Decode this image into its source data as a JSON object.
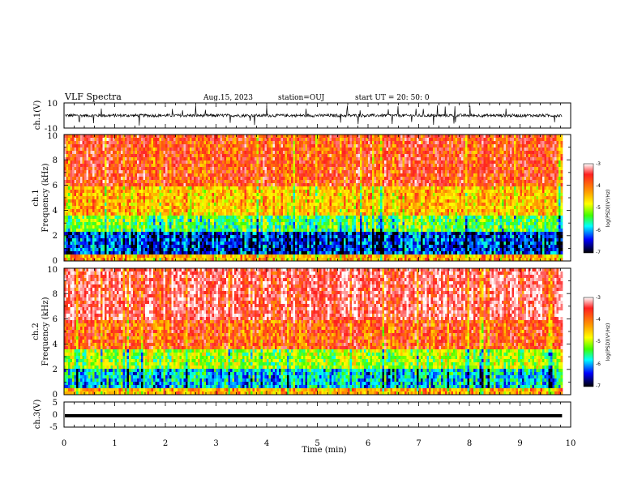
{
  "header": {
    "title": "VLF Spectra",
    "date": "Aug.15, 2023",
    "station": "station=OUJ",
    "start": "start UT =  20: 50: 0"
  },
  "colors": {
    "trace": "#000000",
    "axis": "#000000",
    "colormap": [
      "#ffffff",
      "#ff0000",
      "#ffff00",
      "#00ff00",
      "#00ffff",
      "#0000ff",
      "#000000"
    ]
  },
  "chart_data": [
    {
      "type": "line",
      "panel": "ch1-waveform",
      "ylabel": "ch.1(V)",
      "ylim": [
        -10,
        10
      ],
      "yticks": [
        "10",
        "-10"
      ],
      "xlim": [
        0,
        10
      ],
      "description_values": {
        "baseline": 0,
        "typical_amplitude": 2,
        "spike_amplitude": 8
      }
    },
    {
      "type": "heatmap",
      "panel": "ch1-spectrogram",
      "ylabel": [
        "ch.1",
        "Frequency (kHz)"
      ],
      "ylim": [
        0,
        10
      ],
      "yticks": [
        "0",
        "2",
        "4",
        "6",
        "8",
        "10"
      ],
      "xlim": [
        0,
        10
      ],
      "colorbar": {
        "label": "log(PSD)(V²/Hz)",
        "range": [
          -7,
          -3
        ],
        "ticks": [
          "-3",
          "-4",
          "-5",
          "-6",
          "-7"
        ]
      },
      "bands": [
        {
          "from_khz": 0.0,
          "to_khz": 0.4,
          "log_psd": -4.5
        },
        {
          "from_khz": 0.4,
          "to_khz": 2.2,
          "log_psd": -6.5
        },
        {
          "from_khz": 2.2,
          "to_khz": 3.5,
          "log_psd": -5.5
        },
        {
          "from_khz": 3.5,
          "to_khz": 6.0,
          "log_psd": -4.6
        },
        {
          "from_khz": 6.0,
          "to_khz": 10.0,
          "log_psd": -3.9
        }
      ]
    },
    {
      "type": "heatmap",
      "panel": "ch2-spectrogram",
      "ylabel": [
        "ch.2",
        "Frequency (kHz)"
      ],
      "ylim": [
        0,
        10
      ],
      "yticks": [
        "0",
        "2",
        "4",
        "6",
        "8",
        "10"
      ],
      "xlim": [
        0,
        10
      ],
      "colorbar": {
        "label": "log(PSD)(V²/Hz)",
        "range": [
          -7,
          -3
        ],
        "ticks": [
          "-3",
          "-4",
          "-5",
          "-6",
          "-7"
        ]
      },
      "bands": [
        {
          "from_khz": 0.0,
          "to_khz": 0.5,
          "log_psd": -4.5
        },
        {
          "from_khz": 0.5,
          "to_khz": 2.0,
          "log_psd": -6.0
        },
        {
          "from_khz": 2.0,
          "to_khz": 3.5,
          "log_psd": -5.2
        },
        {
          "from_khz": 3.5,
          "to_khz": 6.0,
          "log_psd": -4.0
        },
        {
          "from_khz": 6.0,
          "to_khz": 10.0,
          "log_psd": -3.5
        }
      ]
    },
    {
      "type": "line",
      "panel": "ch3-waveform",
      "ylabel": "ch.3(V)",
      "ylim": [
        -5,
        5
      ],
      "yticks": [
        "5",
        "0",
        "-5"
      ],
      "xlim": [
        0,
        10
      ],
      "constant_value": -0.5
    }
  ],
  "xaxis": {
    "label": "Time (min)",
    "ticks": [
      "0",
      "1",
      "2",
      "3",
      "4",
      "5",
      "6",
      "7",
      "8",
      "9",
      "10"
    ],
    "range": [
      0,
      10
    ],
    "data_end": 9.83
  }
}
